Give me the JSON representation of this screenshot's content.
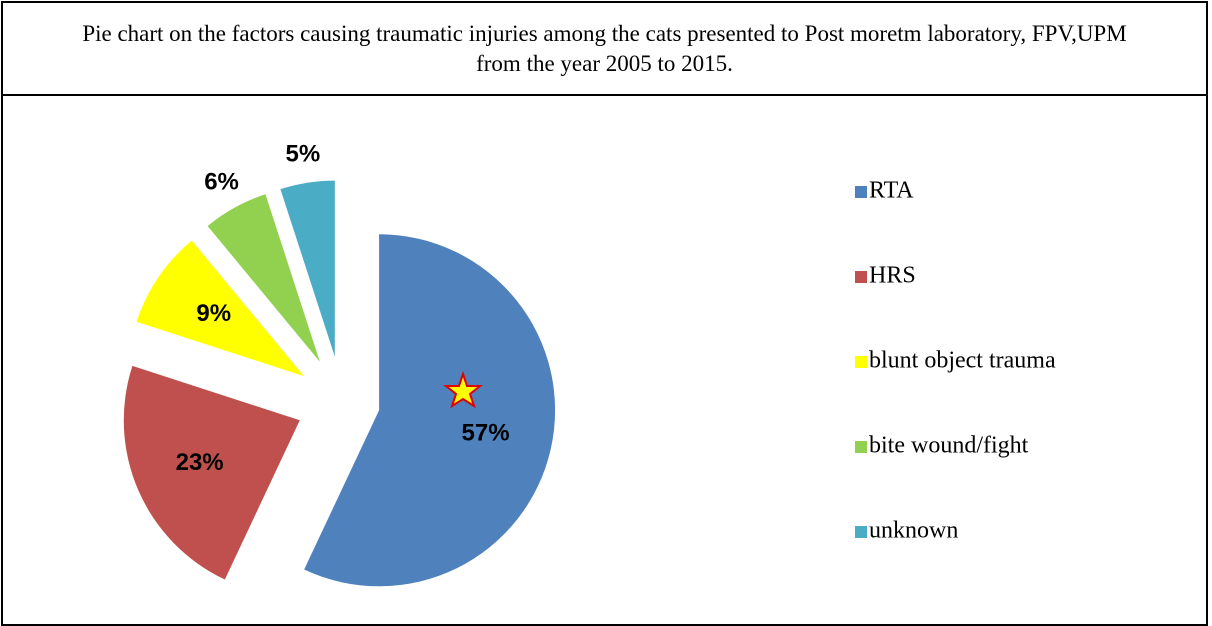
{
  "chart_data": {
    "type": "pie",
    "title": "Pie chart on the factors causing traumatic injuries among the cats presented to Post moretm laboratory, FPV,UPM from the year 2005 to 2015.",
    "categories": [
      "RTA",
      "HRS",
      "blunt object trauma",
      "bite wound/fight",
      "unknown"
    ],
    "values": [
      57,
      23,
      9,
      6,
      5
    ],
    "value_labels": [
      "57%",
      "23%",
      "9%",
      "6%",
      "5%"
    ],
    "colors": [
      "#4f81bd",
      "#c0504d",
      "#ffff00",
      "#92d050",
      "#4bacc6"
    ],
    "legend": "right"
  }
}
